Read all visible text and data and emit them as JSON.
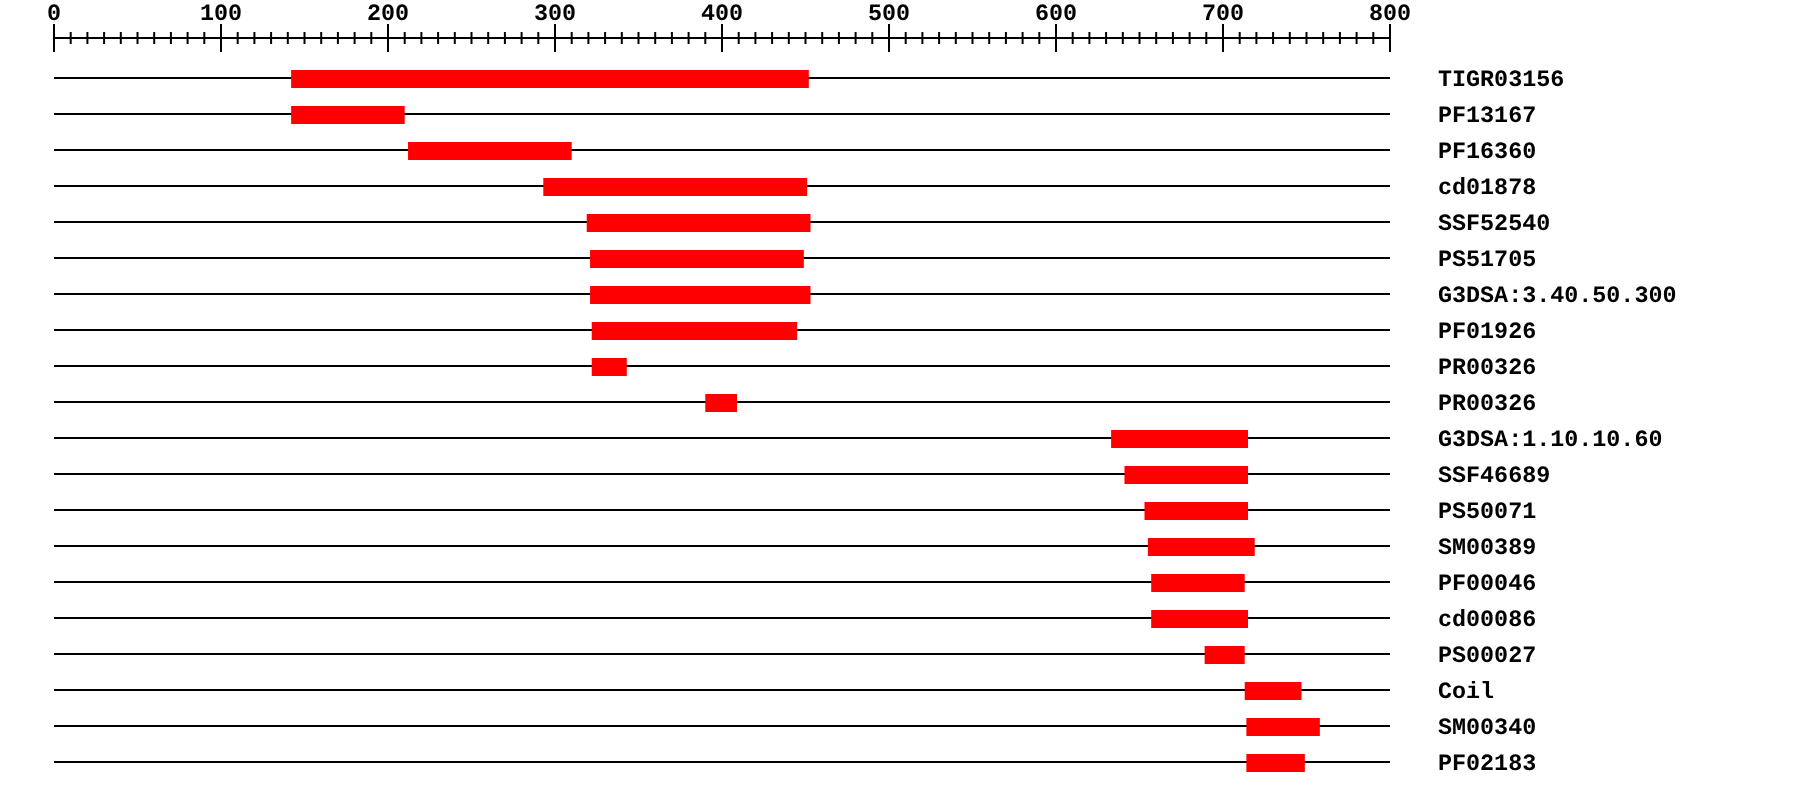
{
  "chart_data": {
    "type": "bar",
    "orientation": "horizontal",
    "categories": [
      "TIGR03156",
      "PF13167",
      "PF16360",
      "cd01878",
      "SSF52540",
      "PS51705",
      "G3DSA:3.40.50.300",
      "PF01926",
      "PR00326",
      "PR00326",
      "G3DSA:1.10.10.60",
      "SSF46689",
      "PS50071",
      "SM00389",
      "PF00046",
      "cd00086",
      "PS00027",
      "Coil",
      "SM00340",
      "PF02183"
    ],
    "base": [
      142,
      142,
      212,
      293,
      319,
      321,
      321,
      322,
      322,
      390,
      633,
      641,
      653,
      655,
      657,
      657,
      689,
      713,
      714,
      714
    ],
    "values": [
      310,
      68,
      98,
      158,
      134,
      128,
      132,
      123,
      21,
      19,
      82,
      74,
      62,
      64,
      56,
      58,
      24,
      34,
      44,
      35
    ],
    "color": "#ff0000",
    "xlim": [
      0,
      800
    ],
    "xticks": [
      0,
      {
        "value": 10,
        "label": null
      },
      {
        "value": 20,
        "label": null
      },
      {
        "value": 30,
        "label": null
      },
      {
        "value": 40,
        "label": null
      },
      {
        "value": 50,
        "label": null
      },
      {
        "value": 60,
        "label": null
      },
      {
        "value": 70,
        "label": null
      },
      {
        "value": 80,
        "label": null
      },
      {
        "value": 90,
        "label": null
      },
      100,
      {
        "value": 110,
        "label": null
      },
      {
        "value": 120,
        "label": null
      },
      {
        "value": 130,
        "label": null
      },
      {
        "value": 140,
        "label": null
      },
      {
        "value": 150,
        "label": null
      },
      {
        "value": 160,
        "label": null
      },
      {
        "value": 170,
        "label": null
      },
      {
        "value": 180,
        "label": null
      },
      {
        "value": 190,
        "label": null
      },
      200,
      {
        "value": 210,
        "label": null
      },
      {
        "value": 220,
        "label": null
      },
      {
        "value": 230,
        "label": null
      },
      {
        "value": 240,
        "label": null
      },
      {
        "value": 250,
        "label": null
      },
      {
        "value": 260,
        "label": null
      },
      {
        "value": 270,
        "label": null
      },
      {
        "value": 280,
        "label": null
      },
      {
        "value": 290,
        "label": null
      },
      300,
      {
        "value": 310,
        "label": null
      },
      {
        "value": 320,
        "label": null
      },
      {
        "value": 330,
        "label": null
      },
      {
        "value": 340,
        "label": null
      },
      {
        "value": 350,
        "label": null
      },
      {
        "value": 360,
        "label": null
      },
      {
        "value": 370,
        "label": null
      },
      {
        "value": 380,
        "label": null
      },
      {
        "value": 390,
        "label": null
      },
      400,
      {
        "value": 410,
        "label": null
      },
      {
        "value": 420,
        "label": null
      },
      {
        "value": 430,
        "label": null
      },
      {
        "value": 440,
        "label": null
      },
      {
        "value": 450,
        "label": null
      },
      {
        "value": 460,
        "label": null
      },
      {
        "value": 470,
        "label": null
      },
      {
        "value": 480,
        "label": null
      },
      {
        "value": 490,
        "label": null
      },
      500,
      {
        "value": 510,
        "label": null
      },
      {
        "value": 520,
        "label": null
      },
      {
        "value": 530,
        "label": null
      },
      {
        "value": 540,
        "label": null
      },
      {
        "value": 550,
        "label": null
      },
      {
        "value": 560,
        "label": null
      },
      {
        "value": 570,
        "label": null
      },
      {
        "value": 580,
        "label": null
      },
      {
        "value": 590,
        "label": null
      },
      600,
      {
        "value": 610,
        "label": null
      },
      {
        "value": 620,
        "label": null
      },
      {
        "value": 630,
        "label": null
      },
      {
        "value": 640,
        "label": null
      },
      {
        "value": 650,
        "label": null
      },
      {
        "value": 660,
        "label": null
      },
      {
        "value": 670,
        "label": null
      },
      {
        "value": 680,
        "label": null
      },
      {
        "value": 690,
        "label": null
      },
      700,
      {
        "value": 710,
        "label": null
      },
      {
        "value": 720,
        "label": null
      },
      {
        "value": 730,
        "label": null
      },
      {
        "value": 740,
        "label": null
      },
      {
        "value": 750,
        "label": null
      },
      {
        "value": 760,
        "label": null
      },
      {
        "value": 770,
        "label": null
      },
      {
        "value": 780,
        "label": null
      },
      {
        "value": 790,
        "label": null
      },
      800
    ],
    "grid": "y"
  }
}
